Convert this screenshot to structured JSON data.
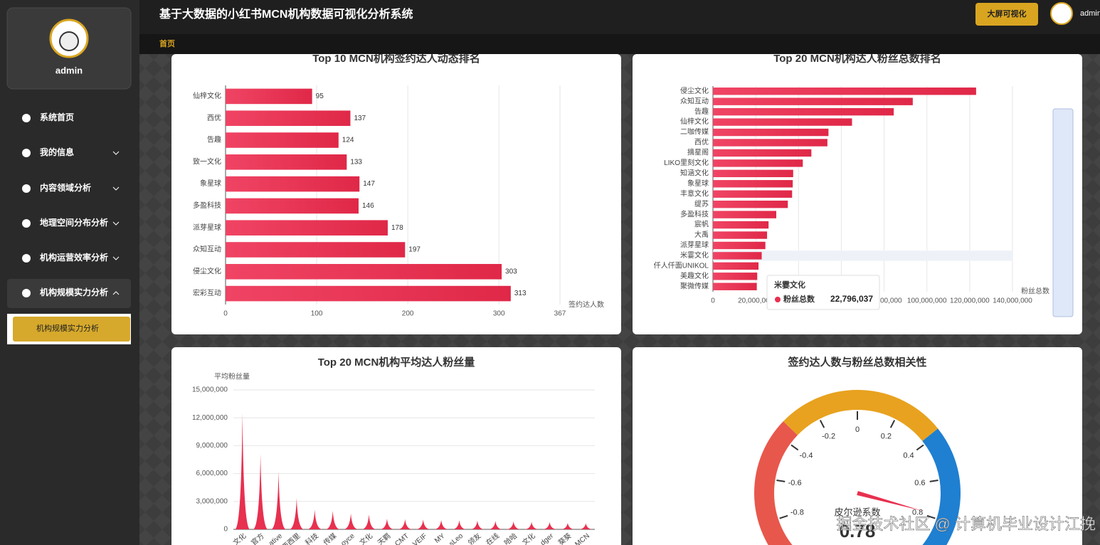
{
  "header": {
    "title": "基于大数据的小红书MCN机构数据可视化分析系统",
    "button": "大屏可视化",
    "user": "admin",
    "tab": "首页"
  },
  "sidebar": {
    "user": "admin",
    "menu": [
      "系统首页",
      "我的信息",
      "内容领域分析",
      "地理空间分布分析",
      "机构运营效率分析",
      "机构规模实力分析"
    ],
    "submenu": [
      "机构规模实力分析"
    ]
  },
  "chart_data": [
    {
      "type": "hbar",
      "title": "Top 10 MCN机构签约达人动态排名",
      "x_label": "签约达人数",
      "categories": [
        "仙梓文化",
        "西优",
        "告趣",
        "致一文化",
        "象星球",
        "多盈科技",
        "派芽星球",
        "众知互动",
        "侵尘文化",
        "宏彩互动"
      ],
      "values": [
        95,
        137,
        124,
        133,
        147,
        146,
        178,
        197,
        303,
        313
      ],
      "color": "#e8304f",
      "xlim": [
        0,
        367
      ],
      "xticks": [
        0,
        100,
        200,
        300,
        367
      ],
      "grid": true,
      "value_labels_shown": true
    },
    {
      "type": "hbar",
      "title": "Top 20 MCN机构达人粉丝总数排名",
      "x_label": "粉丝总数",
      "categories": [
        "侵尘文化",
        "众知互动",
        "告趣",
        "仙梓文化",
        "二咖传媒",
        "西优",
        "摘星阁",
        "LIKO里刻文化",
        "知涵文化",
        "象星球",
        "丰意文化",
        "缇苏",
        "多盈科技",
        "宸帆",
        "大禹",
        "派芽星球",
        "米霎文化",
        "仟人仟面UNIKOL",
        "美趣文化",
        "聚微传媒"
      ],
      "values": [
        123000000,
        93400000,
        84500000,
        65000000,
        54000000,
        53500000,
        46000000,
        42000000,
        37500000,
        37300000,
        37000000,
        35000000,
        29600000,
        26000000,
        25300000,
        24500000,
        22796037,
        21300000,
        20700000,
        20500000
      ],
      "color": "#e8304f",
      "xlim": [
        0,
        140000000
      ],
      "xticks": [
        0,
        {
          "value": 20000000,
          "label": "20,000,000"
        },
        {
          "value": 40000000,
          "label": "40,000,000"
        },
        {
          "value": 60000000,
          "label": "60,000,000"
        },
        {
          "value": 80000000,
          "label": "80,000,000"
        },
        {
          "value": 100000000,
          "label": "100,000,000"
        },
        {
          "value": 120000000,
          "label": "120,000,000"
        },
        {
          "value": 140000000,
          "label": "140,000,000"
        }
      ],
      "grid": true,
      "value_labels_shown": false,
      "tooltip": {
        "index": 16,
        "series": "粉丝总数",
        "value_label": "22,796,037"
      }
    },
    {
      "type": "spike",
      "title": "Top 20 MCN机构平均达人粉丝量",
      "y_label": "平均粉丝量",
      "categories": [
        "文化",
        "官方",
        "ative",
        "西西里",
        "科技",
        "传媒",
        "oyce",
        "文化",
        "天羁",
        "CMT",
        "VEIF",
        "MY",
        "sLeo",
        "领友",
        "在线",
        "哈哈",
        "文化",
        "dger",
        "葵葵",
        "MCN"
      ],
      "values": [
        12550000,
        8100000,
        6200000,
        3400000,
        2100000,
        2000000,
        1700000,
        1600000,
        1150000,
        1100000,
        1050000,
        1000000,
        980000,
        950000,
        900000,
        850000,
        800000,
        780000,
        700000,
        650000
      ],
      "color": "#e8304f",
      "ylim": [
        0,
        15000000
      ],
      "yticks": [
        0,
        {
          "value": 3000000,
          "label": "3,000,000"
        },
        {
          "value": 6000000,
          "label": "6,000,000"
        },
        {
          "value": 9000000,
          "label": "9,000,000"
        },
        {
          "value": 12000000,
          "label": "12,000,000"
        },
        {
          "value": 15000000,
          "label": "15,000,000"
        }
      ],
      "grid": true
    },
    {
      "type": "gauge",
      "title": "签约达人数与粉丝总数相关性",
      "label": "皮尔逊系数",
      "value": 0.78,
      "ylim": [
        -1,
        1
      ],
      "yticks": [
        -0.8,
        -0.6,
        -0.4,
        -0.2,
        0,
        0.2,
        0.4,
        0.6,
        0.8
      ],
      "color": "#e8304f"
    }
  ],
  "watermark": "掘金技术社区 @ 计算机毕业设计江挽"
}
